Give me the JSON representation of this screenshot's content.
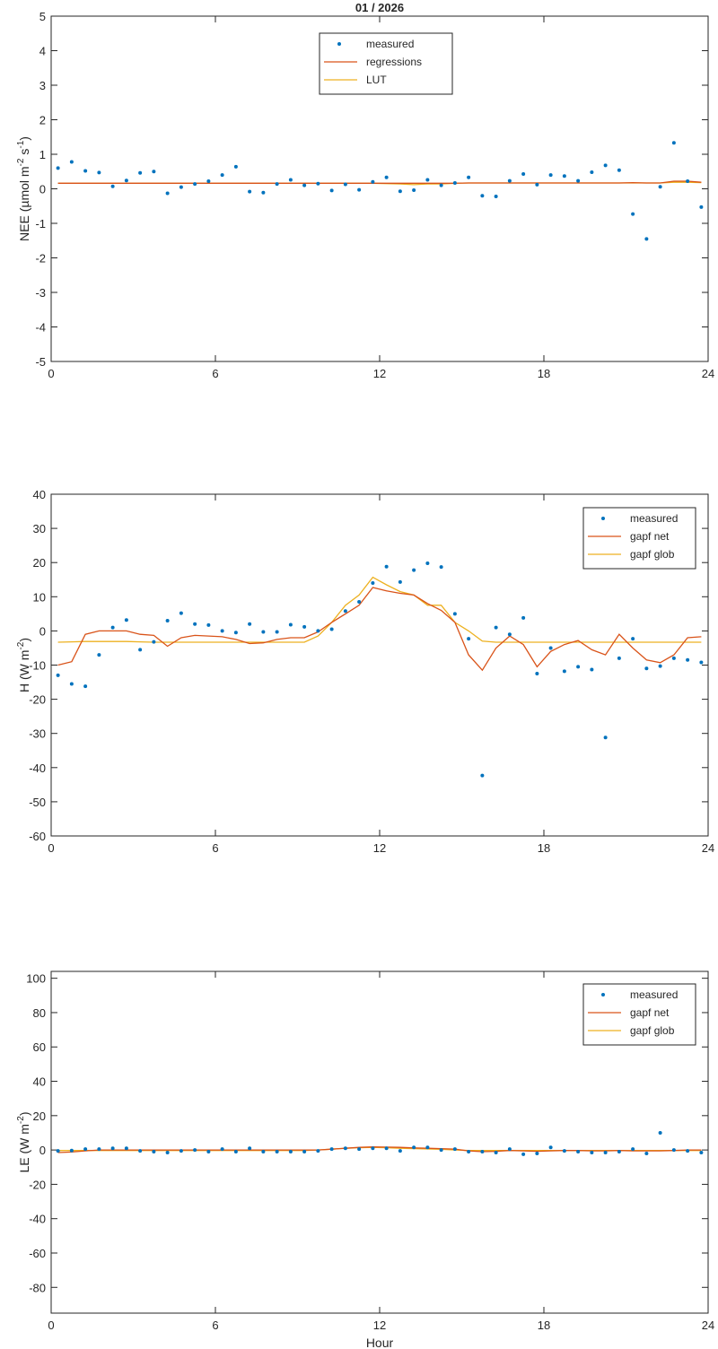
{
  "title": "01 / 2026",
  "colors": {
    "measured": "#0072BD",
    "line1": "#D95319",
    "line2": "#EDB120",
    "axis": "#262626"
  },
  "chart_data": [
    {
      "type": "line",
      "ylabel": "NEE (µmol m⁻² s⁻¹)",
      "ylabel_parts": {
        "main": "NEE (µmol m",
        "sup1": "-2",
        "mid": " s",
        "sup2": "-1",
        "end": ")"
      },
      "xlabel": "",
      "xlim": [
        0,
        24
      ],
      "ylim": [
        -5,
        5
      ],
      "xticks": [
        "0",
        "6",
        "12",
        "18",
        "24"
      ],
      "yticks": [
        "5",
        "4",
        "3",
        "2",
        "1",
        "0",
        "-1",
        "-2",
        "-3",
        "-4",
        "-5"
      ],
      "ytick_values": [
        5,
        4,
        3,
        2,
        1,
        0,
        -1,
        -2,
        -3,
        -4,
        -5
      ],
      "legend": {
        "placement": "top-center",
        "entries": [
          "measured",
          "regressions",
          "LUT"
        ]
      },
      "series": [
        {
          "name": "measured",
          "style": "points",
          "values": [
            0.6,
            0.78,
            0.52,
            0.47,
            0.07,
            0.24,
            0.46,
            0.5,
            -0.13,
            0.05,
            0.14,
            0.22,
            0.4,
            0.64,
            -0.08,
            -0.11,
            0.14,
            0.26,
            0.1,
            0.15,
            -0.05,
            0.13,
            -0.03,
            0.2,
            0.33,
            -0.07,
            -0.04,
            0.26,
            0.1,
            0.17,
            0.33,
            -0.2,
            -0.22,
            0.23,
            0.43,
            0.12,
            0.4,
            0.37,
            0.23,
            0.48,
            0.68,
            0.54,
            -0.73,
            -1.45,
            0.06,
            1.33,
            0.22,
            -0.53
          ]
        },
        {
          "name": "regressions",
          "style": "line",
          "values": [
            0.16,
            0.16,
            0.16,
            0.16,
            0.16,
            0.16,
            0.16,
            0.16,
            0.16,
            0.16,
            0.16,
            0.16,
            0.16,
            0.16,
            0.16,
            0.16,
            0.16,
            0.16,
            0.16,
            0.16,
            0.16,
            0.16,
            0.16,
            0.16,
            0.16,
            0.16,
            0.16,
            0.16,
            0.16,
            0.16,
            0.17,
            0.17,
            0.17,
            0.17,
            0.17,
            0.17,
            0.17,
            0.17,
            0.17,
            0.17,
            0.17,
            0.17,
            0.18,
            0.17,
            0.17,
            0.22,
            0.22,
            0.19
          ]
        },
        {
          "name": "LUT",
          "style": "line",
          "values": [
            0.16,
            0.16,
            0.16,
            0.16,
            0.16,
            0.16,
            0.16,
            0.16,
            0.16,
            0.16,
            0.16,
            0.16,
            0.16,
            0.16,
            0.16,
            0.16,
            0.16,
            0.16,
            0.16,
            0.16,
            0.16,
            0.16,
            0.16,
            0.16,
            0.15,
            0.14,
            0.12,
            0.14,
            0.14,
            0.16,
            0.17,
            0.17,
            0.17,
            0.17,
            0.17,
            0.17,
            0.17,
            0.17,
            0.17,
            0.17,
            0.17,
            0.17,
            0.17,
            0.17,
            0.17,
            0.19,
            0.19,
            0.18
          ]
        }
      ]
    },
    {
      "type": "line",
      "ylabel_parts": {
        "main": "H (W m",
        "sup1": "-2",
        "end": ")"
      },
      "xlabel": "",
      "xlim": [
        0,
        24
      ],
      "ylim": [
        -60,
        40
      ],
      "xticks": [
        "0",
        "6",
        "12",
        "18",
        "24"
      ],
      "yticks": [
        "40",
        "30",
        "20",
        "10",
        "0",
        "-10",
        "-20",
        "-30",
        "-40",
        "-50",
        "-60"
      ],
      "ytick_values": [
        40,
        30,
        20,
        10,
        0,
        -10,
        -20,
        -30,
        -40,
        -50,
        -60
      ],
      "legend": {
        "placement": "top-right",
        "entries": [
          "measured",
          "gapf net",
          "gapf glob"
        ]
      },
      "series": [
        {
          "name": "measured",
          "style": "points",
          "values": [
            -13,
            -15.5,
            -16.2,
            -7,
            1,
            3.2,
            -5.5,
            -3.2,
            3,
            5.2,
            2,
            1.7,
            0,
            -0.5,
            2,
            -0.3,
            -0.3,
            1.8,
            1.2,
            0,
            0.5,
            5.8,
            8.5,
            14,
            18.8,
            14.3,
            17.8,
            19.8,
            18.7,
            5,
            -2.3,
            -42.3,
            1,
            -1,
            3.8,
            -12.5,
            -5,
            -11.8,
            -10.5,
            -11.3,
            -31.2,
            -8,
            -2.3,
            -11,
            -10.3,
            -8,
            -8.5,
            -9.2
          ]
        },
        {
          "name": "gapf net",
          "style": "line",
          "values": [
            -10,
            -9,
            -1,
            0,
            0,
            0,
            -1,
            -1.3,
            -4.5,
            -2,
            -1.3,
            -1.5,
            -1.7,
            -2.5,
            -3.7,
            -3.5,
            -2.5,
            -2,
            -2,
            -0.3,
            2.5,
            5,
            7.5,
            12.7,
            11.7,
            11,
            10.5,
            8,
            6,
            2.5,
            -7,
            -11.5,
            -5,
            -1.5,
            -4,
            -10.5,
            -6,
            -4,
            -2.8,
            -5.5,
            -7,
            -1,
            -5,
            -8.5,
            -9.3,
            -7,
            -2,
            -1.7
          ]
        },
        {
          "name": "gapf glob",
          "style": "line",
          "values": [
            -3.3,
            -3.2,
            -3.1,
            -3.1,
            -3.1,
            -3.1,
            -3.2,
            -3.3,
            -3.3,
            -3.3,
            -3.3,
            -3.3,
            -3.3,
            -3.3,
            -3.3,
            -3.3,
            -3.3,
            -3.3,
            -3.3,
            -1.5,
            2.5,
            7.5,
            10.5,
            15.7,
            13.5,
            11.5,
            10.5,
            7.5,
            7.5,
            2.5,
            0,
            -3,
            -3.3,
            -3.3,
            -3.3,
            -3.3,
            -3.3,
            -3.3,
            -3.3,
            -3.3,
            -3.3,
            -3.3,
            -3.3,
            -3.3,
            -3.3,
            -3.3,
            -3.3,
            -3.3
          ]
        }
      ]
    },
    {
      "type": "line",
      "ylabel_parts": {
        "main": "LE (W m",
        "sup1": "-2",
        "end": ")"
      },
      "xlabel": "Hour",
      "xlim": [
        0,
        24
      ],
      "ylim": [
        -95,
        104
      ],
      "xticks": [
        "0",
        "6",
        "12",
        "18",
        "24"
      ],
      "yticks": [
        "100",
        "80",
        "60",
        "40",
        "20",
        "0",
        "-20",
        "-40",
        "-60",
        "-80"
      ],
      "ytick_values": [
        100,
        80,
        60,
        40,
        20,
        0,
        -20,
        -40,
        -60,
        -80
      ],
      "legend": {
        "placement": "top-right",
        "entries": [
          "measured",
          "gapf net",
          "gapf glob"
        ]
      },
      "series": [
        {
          "name": "measured",
          "style": "points",
          "values": [
            -0.5,
            -0.3,
            0.5,
            0.5,
            1,
            1,
            -0.5,
            -1,
            -1.5,
            -0.5,
            0,
            -1,
            0.5,
            -1,
            1,
            -1,
            -1,
            -1,
            -1,
            -0.5,
            0.5,
            1,
            0.5,
            1,
            1,
            -0.5,
            1.5,
            1.5,
            0,
            0.5,
            -1,
            -1,
            -1.5,
            0.5,
            -2.5,
            -2,
            1.5,
            -0.5,
            -1,
            -1.5,
            -1.5,
            -1,
            0.5,
            -2,
            10,
            0,
            -0.5,
            -1.5
          ]
        },
        {
          "name": "gapf net",
          "style": "line",
          "values": [
            -1.5,
            -1.2,
            -0.5,
            0,
            0,
            0,
            0,
            0,
            0,
            0,
            0,
            0,
            0,
            0,
            0,
            0,
            0,
            0,
            0,
            0,
            0.5,
            1,
            1.5,
            1.8,
            1.7,
            1.5,
            1.2,
            1,
            0.8,
            0.5,
            -0.5,
            -1,
            -0.8,
            -0.3,
            -0.5,
            -0.8,
            -0.5,
            -0.3,
            -0.3,
            -0.5,
            -0.5,
            -0.3,
            -0.5,
            -0.5,
            -0.5,
            -0.3,
            0,
            0
          ]
        },
        {
          "name": "gapf glob",
          "style": "line",
          "values": [
            -0.3,
            -0.3,
            -0.3,
            -0.3,
            -0.3,
            -0.3,
            -0.3,
            -0.3,
            -0.3,
            -0.3,
            -0.3,
            -0.3,
            -0.3,
            -0.3,
            -0.3,
            -0.3,
            -0.3,
            -0.3,
            -0.3,
            0,
            0.5,
            1,
            1.3,
            1.5,
            1.3,
            1,
            0.8,
            0.6,
            0.4,
            0,
            -0.3,
            -0.3,
            -0.3,
            -0.3,
            -0.3,
            -0.3,
            -0.3,
            -0.3,
            -0.3,
            -0.3,
            -0.3,
            -0.3,
            -0.3,
            -0.3,
            -0.3,
            -0.3,
            -0.3,
            -0.3
          ]
        }
      ]
    }
  ]
}
